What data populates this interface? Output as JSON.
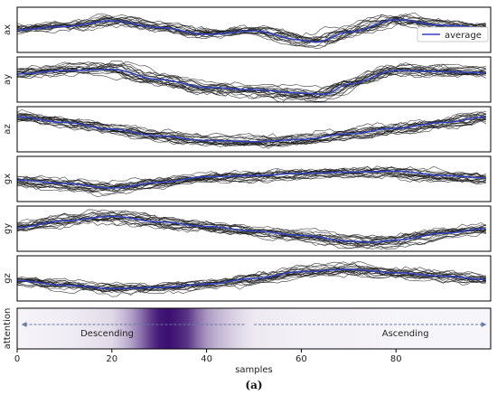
{
  "chart_data": {
    "type": "line",
    "xlabel": "samples",
    "caption": "(a)",
    "xlim": [
      0,
      100
    ],
    "xticks": [
      0,
      20,
      40,
      60,
      80
    ],
    "legend": {
      "label": "average",
      "placement": "top-right"
    },
    "colors": {
      "average": "#3344bb",
      "samples": "#1a1a1a",
      "attention": "#3b0f70"
    },
    "panels": [
      {
        "name": "ax",
        "ylim": [
          -1,
          1
        ],
        "average": {
          "x": [
            0,
            10,
            20,
            30,
            40,
            50,
            60,
            63,
            70,
            80,
            90,
            99
          ],
          "y": [
            0.0,
            0.15,
            0.4,
            0.1,
            -0.2,
            -0.05,
            -0.45,
            -0.55,
            -0.1,
            0.45,
            0.2,
            0.1
          ]
        }
      },
      {
        "name": "ay",
        "ylim": [
          -1,
          1
        ],
        "average": {
          "x": [
            0,
            10,
            20,
            30,
            40,
            50,
            60,
            65,
            70,
            80,
            90,
            99
          ],
          "y": [
            0.25,
            0.4,
            0.45,
            0.0,
            -0.35,
            -0.45,
            -0.6,
            -0.65,
            -0.2,
            0.4,
            0.35,
            0.3
          ]
        }
      },
      {
        "name": "az",
        "ylim": [
          -1,
          1
        ],
        "average": {
          "x": [
            0,
            10,
            20,
            30,
            40,
            50,
            60,
            70,
            80,
            90,
            99
          ],
          "y": [
            0.55,
            0.3,
            0.0,
            -0.3,
            -0.5,
            -0.55,
            -0.45,
            -0.2,
            0.05,
            0.3,
            0.55
          ]
        }
      },
      {
        "name": "gx",
        "ylim": [
          -1,
          1
        ],
        "average": {
          "x": [
            0,
            10,
            20,
            30,
            40,
            50,
            60,
            70,
            80,
            90,
            99
          ],
          "y": [
            -0.05,
            -0.2,
            -0.4,
            -0.15,
            0.1,
            0.15,
            0.25,
            0.3,
            0.35,
            0.15,
            0.05
          ]
        }
      },
      {
        "name": "gy",
        "ylim": [
          -1,
          1
        ],
        "average": {
          "x": [
            0,
            10,
            20,
            30,
            40,
            50,
            60,
            70,
            75,
            80,
            90,
            99
          ],
          "y": [
            0.05,
            0.35,
            0.55,
            0.3,
            0.1,
            -0.1,
            -0.3,
            -0.55,
            -0.6,
            -0.5,
            -0.2,
            0.0
          ]
        }
      },
      {
        "name": "gz",
        "ylim": [
          -1,
          1
        ],
        "average": {
          "x": [
            0,
            10,
            20,
            30,
            40,
            50,
            60,
            70,
            80,
            90,
            99
          ],
          "y": [
            -0.1,
            -0.3,
            -0.45,
            -0.4,
            -0.25,
            0.0,
            0.3,
            0.4,
            0.25,
            0.1,
            -0.05
          ]
        }
      }
    ],
    "attention": {
      "name": "attention",
      "x": [
        0,
        5,
        10,
        15,
        20,
        22,
        24,
        26,
        28,
        30,
        32,
        34,
        36,
        38,
        40,
        42,
        44,
        46,
        48,
        50,
        60,
        70,
        80,
        90,
        99
      ],
      "values": [
        0.02,
        0.03,
        0.04,
        0.06,
        0.1,
        0.18,
        0.3,
        0.5,
        0.75,
        0.95,
        1.0,
        0.92,
        0.8,
        0.55,
        0.35,
        0.25,
        0.18,
        0.12,
        0.08,
        0.05,
        0.03,
        0.03,
        0.02,
        0.02,
        0.02
      ],
      "annotations": [
        {
          "text": "Descending",
          "arrow_from": 48,
          "arrow_to": 1
        },
        {
          "text": "Ascending",
          "arrow_from": 50,
          "arrow_to": 99
        }
      ]
    }
  }
}
